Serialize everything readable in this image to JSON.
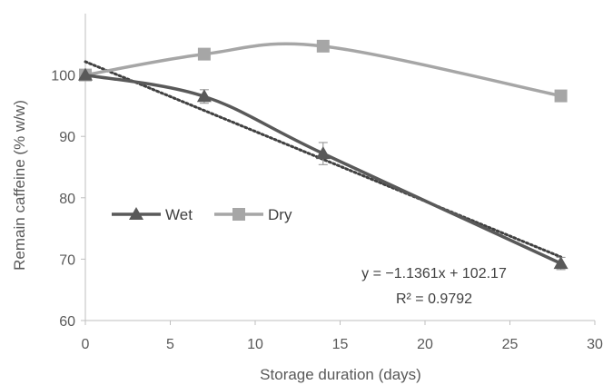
{
  "chart_data": {
    "type": "line",
    "xlabel": "Storage duration (days)",
    "ylabel": "Remain caffeine (% w/w)",
    "xlim": [
      0,
      30
    ],
    "ylim": [
      60,
      110
    ],
    "x_ticks": [
      0,
      5,
      10,
      15,
      20,
      25,
      30
    ],
    "y_ticks": [
      60,
      70,
      80,
      90,
      100
    ],
    "grid": false,
    "legend_position": "left-center",
    "series": [
      {
        "name": "Wet",
        "marker": "triangle",
        "color": "#595959",
        "x": [
          0,
          7,
          14,
          28
        ],
        "y": [
          100,
          96.5,
          87.2,
          69.3
        ],
        "error": [
          0,
          1.1,
          1.8,
          1.0
        ]
      },
      {
        "name": "Dry",
        "marker": "square",
        "color": "#a6a6a6",
        "x": [
          0,
          7,
          14,
          28
        ],
        "y": [
          100,
          103.4,
          104.7,
          96.6
        ]
      }
    ],
    "trendline": {
      "series": "Wet",
      "slope": -1.1361,
      "intercept": 102.17,
      "equation": "y = −1.1361x + 102.17",
      "r_squared_label": "R² = 0.9792"
    }
  }
}
